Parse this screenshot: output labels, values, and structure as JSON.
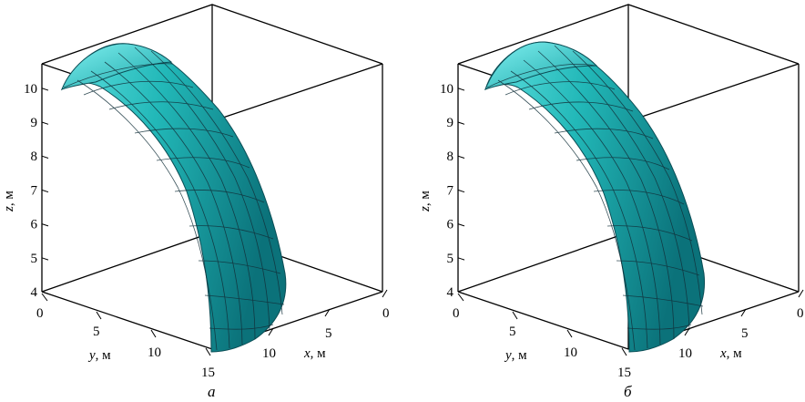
{
  "panels": [
    {
      "id": "a",
      "caption": "а",
      "z_axis": {
        "label_var": "z",
        "label_unit": ", м",
        "ticks": [
          "4",
          "5",
          "6",
          "7",
          "8",
          "9",
          "10"
        ]
      },
      "y_axis": {
        "label_var": "y",
        "label_unit": ", м",
        "ticks": [
          "0",
          "5",
          "10",
          "15"
        ]
      },
      "x_axis": {
        "label_var": "x",
        "label_unit": ", м",
        "ticks": [
          "10",
          "5",
          "0"
        ]
      }
    },
    {
      "id": "b",
      "caption": "б",
      "z_axis": {
        "label_var": "z",
        "label_unit": ", м",
        "ticks": [
          "4",
          "5",
          "6",
          "7",
          "8",
          "9",
          "10"
        ]
      },
      "y_axis": {
        "label_var": "y",
        "label_unit": ", м",
        "ticks": [
          "0",
          "5",
          "10",
          "15"
        ]
      },
      "x_axis": {
        "label_var": "x",
        "label_unit": ", м",
        "ticks": [
          "10",
          "5",
          "0"
        ]
      }
    }
  ],
  "colors": {
    "surface": "#1fb0b0",
    "surface_light": "#66e4e4",
    "surface_dark": "#0a6d74",
    "grid": "#12303a",
    "box": "#000000"
  }
}
